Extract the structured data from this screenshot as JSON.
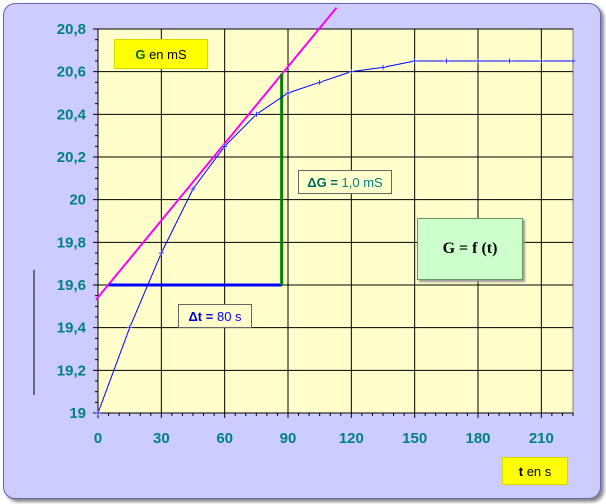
{
  "chart_data": {
    "type": "line",
    "x": [
      0,
      15,
      30,
      45,
      60,
      75,
      90,
      105,
      120,
      135,
      150,
      165,
      180,
      195,
      210,
      225
    ],
    "values": [
      19.0,
      19.4,
      19.75,
      20.05,
      20.25,
      20.4,
      20.5,
      20.55,
      20.6,
      20.62,
      20.65,
      20.65,
      20.65,
      20.65,
      20.65,
      20.65
    ],
    "xlim": [
      0,
      225
    ],
    "ylim": [
      19,
      20.8
    ],
    "x_ticks": [
      0,
      30,
      60,
      90,
      120,
      150,
      180,
      210
    ],
    "y_ticks": [
      19,
      19.2,
      19.4,
      19.6,
      19.8,
      20,
      20.2,
      20.4,
      20.6,
      20.8
    ],
    "x_tick_labels": [
      "0",
      "30",
      "60",
      "90",
      "120",
      "150",
      "180",
      "210"
    ],
    "y_tick_labels": [
      "19",
      "19,2",
      "19,4",
      "19,6",
      "19,8",
      "20",
      "20,2",
      "20,4",
      "20,6",
      "20,8"
    ],
    "tangent": {
      "x": [
        0,
        113
      ],
      "y": [
        19.54,
        20.9
      ]
    },
    "delta_t_segment": {
      "x": [
        5,
        87
      ],
      "y": [
        19.6,
        19.6
      ]
    },
    "delta_g_segment": {
      "x": [
        87,
        87
      ],
      "y": [
        19.6,
        20.59
      ]
    },
    "grid": true,
    "colors": {
      "series": "#0000ff",
      "tangent": "#ff00ff",
      "delta_t": "#0000ff",
      "delta_g": "#008000",
      "plot_background": "#ffffcc",
      "tick_labels": "#008080"
    }
  },
  "labels": {
    "ylabel_symbol": "G",
    "ylabel_rest": " en mS",
    "xlabel_symbol": "t",
    "xlabel_rest": " en s",
    "delta_g_symbol": "ΔG",
    "delta_g_equals": " = ",
    "delta_g_value": "1,0 mS",
    "delta_t_symbol": "Δt",
    "delta_t_equals": " = ",
    "delta_t_value": "80 s",
    "function_label": "G = f (t)"
  }
}
